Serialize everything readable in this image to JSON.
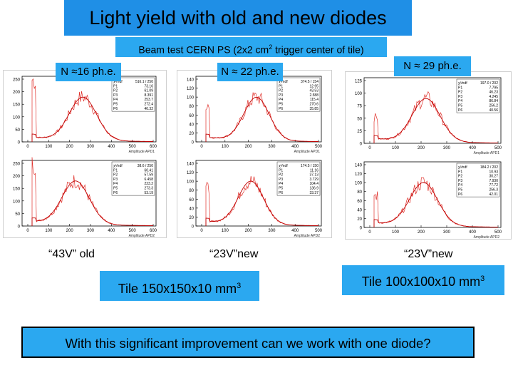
{
  "slide": {
    "title": "Light yield with old and new diodes",
    "subtitle": "Beam test CERN PS (2x2 cm",
    "subtitle_sup": "2",
    "subtitle_tail": " trigger center of tile)",
    "n_labels": [
      "N ≈16 ph.e.",
      "N ≈ 22 ph.e.",
      "N ≈ 29 ph.e."
    ],
    "captions": [
      "“43V” old",
      "“23V”new",
      "“23V”new"
    ],
    "tiles": [
      {
        "text": "Tile 150x150x10 mm",
        "sup": "3"
      },
      {
        "text": "Tile 100x100x10 mm",
        "sup": "3"
      }
    ],
    "question": "With this significant improvement can we work with one diode?"
  },
  "plots": {
    "panel1": {
      "top": {
        "y_ticks": [
          "250",
          "200",
          "150",
          "100",
          "50",
          "0"
        ],
        "x_ticks": [
          "0",
          "100",
          "200",
          "300",
          "400",
          "500",
          "600"
        ],
        "xlabel": "Amplitude APD1",
        "stats": [
          [
            "χ²/ndf",
            "516.1 / 250"
          ],
          [
            "P1",
            "73.16"
          ],
          [
            "P2",
            "61.09"
          ],
          [
            "P3",
            "8.391"
          ],
          [
            "P4",
            "253.7"
          ],
          [
            "P5",
            "272.4"
          ],
          [
            "P6",
            "40.32"
          ]
        ]
      },
      "bottom": {
        "y_ticks": [
          "250",
          "200",
          "150",
          "100",
          "50",
          "0"
        ],
        "x_ticks": [
          "0",
          "100",
          "200",
          "300",
          "400",
          "500",
          "600"
        ],
        "xlabel": "Amplitude APD2",
        "stats": [
          [
            "χ²/ndf",
            "38.6 / 250"
          ],
          [
            "P1",
            "60.41"
          ],
          [
            "P2",
            "57.59"
          ],
          [
            "P3",
            "6.458"
          ],
          [
            "P4",
            "223.2"
          ],
          [
            "P5",
            "273.3"
          ],
          [
            "P6",
            "53.19"
          ]
        ]
      }
    },
    "panel2": {
      "top": {
        "y_ticks": [
          "140",
          "120",
          "100",
          "80",
          "60",
          "40",
          "20",
          "0"
        ],
        "x_ticks": [
          "0",
          "100",
          "200",
          "300",
          "400",
          "500"
        ],
        "xlabel": "Amplitude APD1",
        "stats": [
          [
            "χ²/ndf",
            "374.5 / 154"
          ],
          [
            "P1",
            "12.95"
          ],
          [
            "P2",
            "43.53"
          ],
          [
            "P3",
            "2.588"
          ],
          [
            "P4",
            "115.4"
          ],
          [
            "P5",
            "270.6"
          ],
          [
            "P6",
            "35.85"
          ]
        ]
      },
      "bottom": {
        "y_ticks": [
          "140",
          "120",
          "100",
          "80",
          "60",
          "40",
          "20",
          "0"
        ],
        "x_ticks": [
          "0",
          "100",
          "200",
          "300",
          "400",
          "500"
        ],
        "xlabel": "Amplitude APD2",
        "stats": [
          [
            "χ²/ndf",
            "174.5 / 150"
          ],
          [
            "P1",
            "11.16"
          ],
          [
            "P2",
            "37.13"
          ],
          [
            "P3",
            "3.729"
          ],
          [
            "P4",
            "104.4"
          ],
          [
            "P5",
            "136.9"
          ],
          [
            "P6",
            "33.37"
          ]
        ]
      }
    },
    "panel3": {
      "top": {
        "y_ticks": [
          "125",
          "100",
          "75",
          "50",
          "25",
          "0"
        ],
        "x_ticks": [
          "0",
          "100",
          "200",
          "300",
          "400",
          "500"
        ],
        "xlabel": "Amplitude APD1",
        "stats": [
          [
            "χ²/ndf",
            "197.0 / 202"
          ],
          [
            "P1",
            "7.795"
          ],
          [
            "P2",
            "46.23"
          ],
          [
            "P3",
            "4.245"
          ],
          [
            "P4",
            "86.84"
          ],
          [
            "P5",
            "256.2"
          ],
          [
            "P6",
            "40.56"
          ]
        ]
      },
      "bottom": {
        "y_ticks": [
          "140",
          "120",
          "100",
          "80",
          "60",
          "40",
          "20",
          "0"
        ],
        "x_ticks": [
          "0",
          "100",
          "200",
          "300",
          "400",
          "500"
        ],
        "xlabel": "Amplitude APD2",
        "stats": [
          [
            "χ²/ndf",
            "184.2 / 202"
          ],
          [
            "P1",
            "10.93"
          ],
          [
            "P2",
            "30.27"
          ],
          [
            "P3",
            "7.930"
          ],
          [
            "P4",
            "77.72"
          ],
          [
            "P5",
            "256.3"
          ],
          [
            "P6",
            "42.01"
          ]
        ]
      }
    }
  }
}
